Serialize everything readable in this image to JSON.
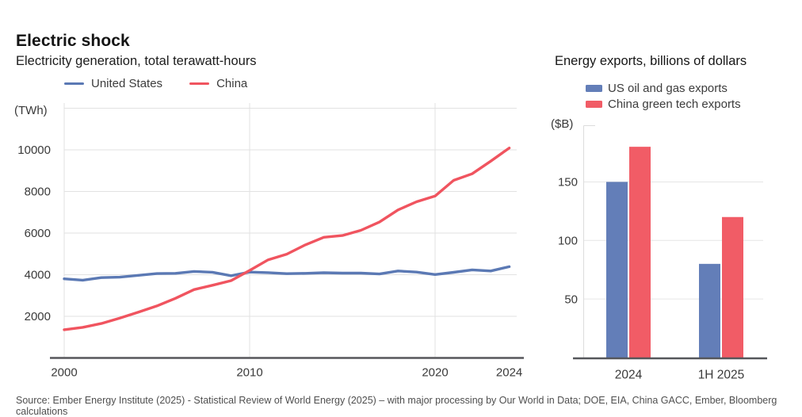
{
  "source": {
    "text": "Source: Ember Energy Institute (2025) - Statistical Review of World Energy (2025) – with major processing by Our World in Data; DOE, EIA, China GACC, Ember, Bloomberg calculations"
  },
  "chart_data": [
    {
      "type": "line",
      "title": "Electric shock",
      "subtitle": "Electricity generation, total terawatt-hours",
      "unit_label": "(TWh)",
      "legend_position": "top",
      "grid": true,
      "x": [
        2000,
        2001,
        2002,
        2003,
        2004,
        2005,
        2006,
        2007,
        2008,
        2009,
        2010,
        2011,
        2012,
        2013,
        2014,
        2015,
        2016,
        2017,
        2018,
        2019,
        2020,
        2021,
        2022,
        2023,
        2024
      ],
      "series": [
        {
          "name": "United States",
          "color": "#5b79b4",
          "values": [
            3802,
            3737,
            3858,
            3883,
            3971,
            4055,
            4065,
            4157,
            4119,
            3950,
            4125,
            4100,
            4048,
            4066,
            4094,
            4078,
            4077,
            4034,
            4178,
            4127,
            4007,
            4116,
            4231,
            4178,
            4386
          ]
        },
        {
          "name": "China",
          "color": "#f0545f",
          "values": [
            1356,
            1472,
            1654,
            1911,
            2203,
            2500,
            2866,
            3282,
            3495,
            3715,
            4207,
            4715,
            4987,
            5432,
            5800,
            5880,
            6133,
            6529,
            7111,
            7504,
            7779,
            8534,
            8849,
            9456,
            10087
          ]
        }
      ],
      "ylim": [
        0,
        12000
      ],
      "ygrid": [
        2000,
        4000,
        6000,
        8000,
        10000,
        12000
      ],
      "yticks": [
        2000,
        4000,
        6000,
        8000,
        10000
      ],
      "xgrid": [
        2000,
        2010,
        2020
      ],
      "xticks": [
        2000,
        2010,
        2020,
        2024
      ]
    },
    {
      "type": "bar",
      "title": "Energy exports, billions of dollars",
      "unit_label": "($B)",
      "legend_position": "top",
      "grid": true,
      "categories": [
        "2024",
        "1H 2025"
      ],
      "series": [
        {
          "name": "US oil and gas exports",
          "color": "#637eb8",
          "values": [
            150,
            80
          ]
        },
        {
          "name": "China green tech exports",
          "color": "#f15c66",
          "values": [
            180,
            120
          ]
        }
      ],
      "ylim": [
        0,
        200
      ],
      "yticks": [
        50,
        100,
        150
      ]
    }
  ]
}
